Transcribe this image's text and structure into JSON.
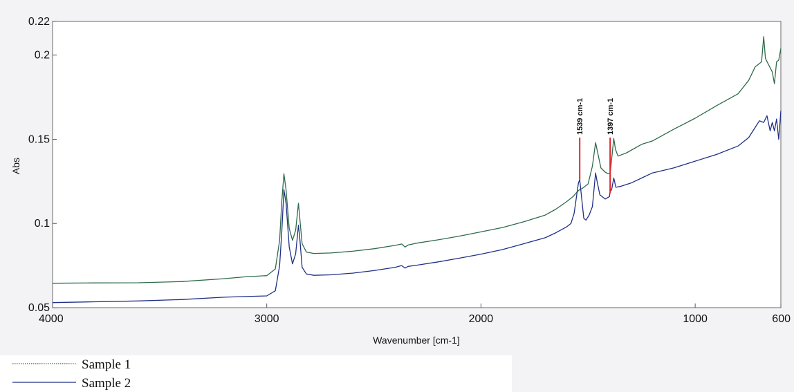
{
  "chart_data": {
    "type": "line",
    "xlabel": "Wavenumber [cm-1]",
    "ylabel": "Abs",
    "xlim": [
      4000,
      600
    ],
    "ylim": [
      0.05,
      0.22
    ],
    "x_reversed": true,
    "x_ticks": [
      4000,
      3000,
      2000,
      1000,
      600
    ],
    "x_tick_labels": [
      "4000",
      "3000",
      "2000",
      "1000",
      "600"
    ],
    "y_ticks": [
      0.05,
      0.1,
      0.15,
      0.2,
      0.22
    ],
    "y_tick_labels": [
      "0.05",
      "0.1",
      "0.15",
      "0.2",
      "0.22"
    ],
    "grid": false,
    "legend_position": "bottom-left",
    "colors": {
      "Sample 1": "#2f6b4a",
      "Sample 2": "#1f2f86",
      "marker": "#e0252a"
    },
    "annotations": [
      {
        "text": "1539 cm-1",
        "x": 1539,
        "y_bottom": 0.126,
        "y_top": 0.151
      },
      {
        "text": "1397 cm-1",
        "x": 1397,
        "y_bottom": 0.118,
        "y_top": 0.151
      }
    ],
    "series": [
      {
        "name": "Sample 1",
        "points": [
          [
            4000,
            0.0645
          ],
          [
            3800,
            0.0647
          ],
          [
            3600,
            0.0648
          ],
          [
            3400,
            0.0655
          ],
          [
            3200,
            0.0672
          ],
          [
            3100,
            0.0683
          ],
          [
            3000,
            0.069
          ],
          [
            2960,
            0.073
          ],
          [
            2940,
            0.09
          ],
          [
            2930,
            0.113
          ],
          [
            2920,
            0.1295
          ],
          [
            2910,
            0.12
          ],
          [
            2895,
            0.097
          ],
          [
            2880,
            0.09
          ],
          [
            2865,
            0.096
          ],
          [
            2852,
            0.112
          ],
          [
            2845,
            0.102
          ],
          [
            2835,
            0.088
          ],
          [
            2815,
            0.083
          ],
          [
            2780,
            0.0822
          ],
          [
            2700,
            0.0825
          ],
          [
            2600,
            0.0835
          ],
          [
            2500,
            0.085
          ],
          [
            2400,
            0.087
          ],
          [
            2370,
            0.0878
          ],
          [
            2355,
            0.086
          ],
          [
            2340,
            0.0872
          ],
          [
            2300,
            0.0883
          ],
          [
            2200,
            0.0903
          ],
          [
            2100,
            0.0925
          ],
          [
            2000,
            0.095
          ],
          [
            1900,
            0.0976
          ],
          [
            1800,
            0.101
          ],
          [
            1700,
            0.105
          ],
          [
            1650,
            0.1085
          ],
          [
            1600,
            0.113
          ],
          [
            1570,
            0.116
          ],
          [
            1550,
            0.119
          ],
          [
            1540,
            0.12
          ],
          [
            1525,
            0.121
          ],
          [
            1500,
            0.1235
          ],
          [
            1480,
            0.134
          ],
          [
            1465,
            0.148
          ],
          [
            1455,
            0.142
          ],
          [
            1440,
            0.133
          ],
          [
            1420,
            0.1305
          ],
          [
            1405,
            0.1295
          ],
          [
            1397,
            0.13
          ],
          [
            1390,
            0.138
          ],
          [
            1380,
            0.1505
          ],
          [
            1372,
            0.144
          ],
          [
            1360,
            0.14
          ],
          [
            1320,
            0.142
          ],
          [
            1250,
            0.147
          ],
          [
            1200,
            0.149
          ],
          [
            1100,
            0.156
          ],
          [
            1000,
            0.1625
          ],
          [
            900,
            0.17
          ],
          [
            800,
            0.177
          ],
          [
            750,
            0.185
          ],
          [
            720,
            0.193
          ],
          [
            690,
            0.196
          ],
          [
            680,
            0.211
          ],
          [
            672,
            0.198
          ],
          [
            660,
            0.195
          ],
          [
            640,
            0.19
          ],
          [
            630,
            0.183
          ],
          [
            620,
            0.196
          ],
          [
            610,
            0.197
          ],
          [
            600,
            0.204
          ]
        ]
      },
      {
        "name": "Sample 2",
        "points": [
          [
            4000,
            0.053
          ],
          [
            3800,
            0.0535
          ],
          [
            3600,
            0.054
          ],
          [
            3400,
            0.0548
          ],
          [
            3200,
            0.0562
          ],
          [
            3100,
            0.0566
          ],
          [
            3000,
            0.057
          ],
          [
            2960,
            0.06
          ],
          [
            2940,
            0.075
          ],
          [
            2930,
            0.095
          ],
          [
            2920,
            0.12
          ],
          [
            2910,
            0.112
          ],
          [
            2895,
            0.086
          ],
          [
            2880,
            0.076
          ],
          [
            2865,
            0.082
          ],
          [
            2852,
            0.099
          ],
          [
            2845,
            0.09
          ],
          [
            2835,
            0.074
          ],
          [
            2815,
            0.07
          ],
          [
            2780,
            0.0692
          ],
          [
            2700,
            0.0695
          ],
          [
            2600,
            0.0705
          ],
          [
            2500,
            0.072
          ],
          [
            2400,
            0.074
          ],
          [
            2370,
            0.075
          ],
          [
            2355,
            0.0735
          ],
          [
            2340,
            0.0745
          ],
          [
            2300,
            0.0752
          ],
          [
            2200,
            0.0772
          ],
          [
            2100,
            0.0794
          ],
          [
            2000,
            0.0818
          ],
          [
            1900,
            0.0845
          ],
          [
            1800,
            0.088
          ],
          [
            1700,
            0.0915
          ],
          [
            1650,
            0.0945
          ],
          [
            1600,
            0.098
          ],
          [
            1580,
            0.1
          ],
          [
            1565,
            0.106
          ],
          [
            1555,
            0.115
          ],
          [
            1545,
            0.124
          ],
          [
            1539,
            0.126
          ],
          [
            1530,
            0.115
          ],
          [
            1520,
            0.103
          ],
          [
            1510,
            0.102
          ],
          [
            1495,
            0.105
          ],
          [
            1480,
            0.11
          ],
          [
            1465,
            0.13
          ],
          [
            1458,
            0.125
          ],
          [
            1445,
            0.117
          ],
          [
            1420,
            0.1145
          ],
          [
            1400,
            0.116
          ],
          [
            1397,
            0.119
          ],
          [
            1390,
            0.12
          ],
          [
            1380,
            0.127
          ],
          [
            1370,
            0.1215
          ],
          [
            1350,
            0.122
          ],
          [
            1300,
            0.124
          ],
          [
            1250,
            0.127
          ],
          [
            1200,
            0.13
          ],
          [
            1100,
            0.133
          ],
          [
            1000,
            0.137
          ],
          [
            900,
            0.141
          ],
          [
            800,
            0.146
          ],
          [
            750,
            0.151
          ],
          [
            720,
            0.157
          ],
          [
            700,
            0.161
          ],
          [
            680,
            0.16
          ],
          [
            665,
            0.164
          ],
          [
            650,
            0.155
          ],
          [
            640,
            0.16
          ],
          [
            630,
            0.155
          ],
          [
            620,
            0.162
          ],
          [
            610,
            0.15
          ],
          [
            600,
            0.167
          ]
        ]
      }
    ]
  }
}
